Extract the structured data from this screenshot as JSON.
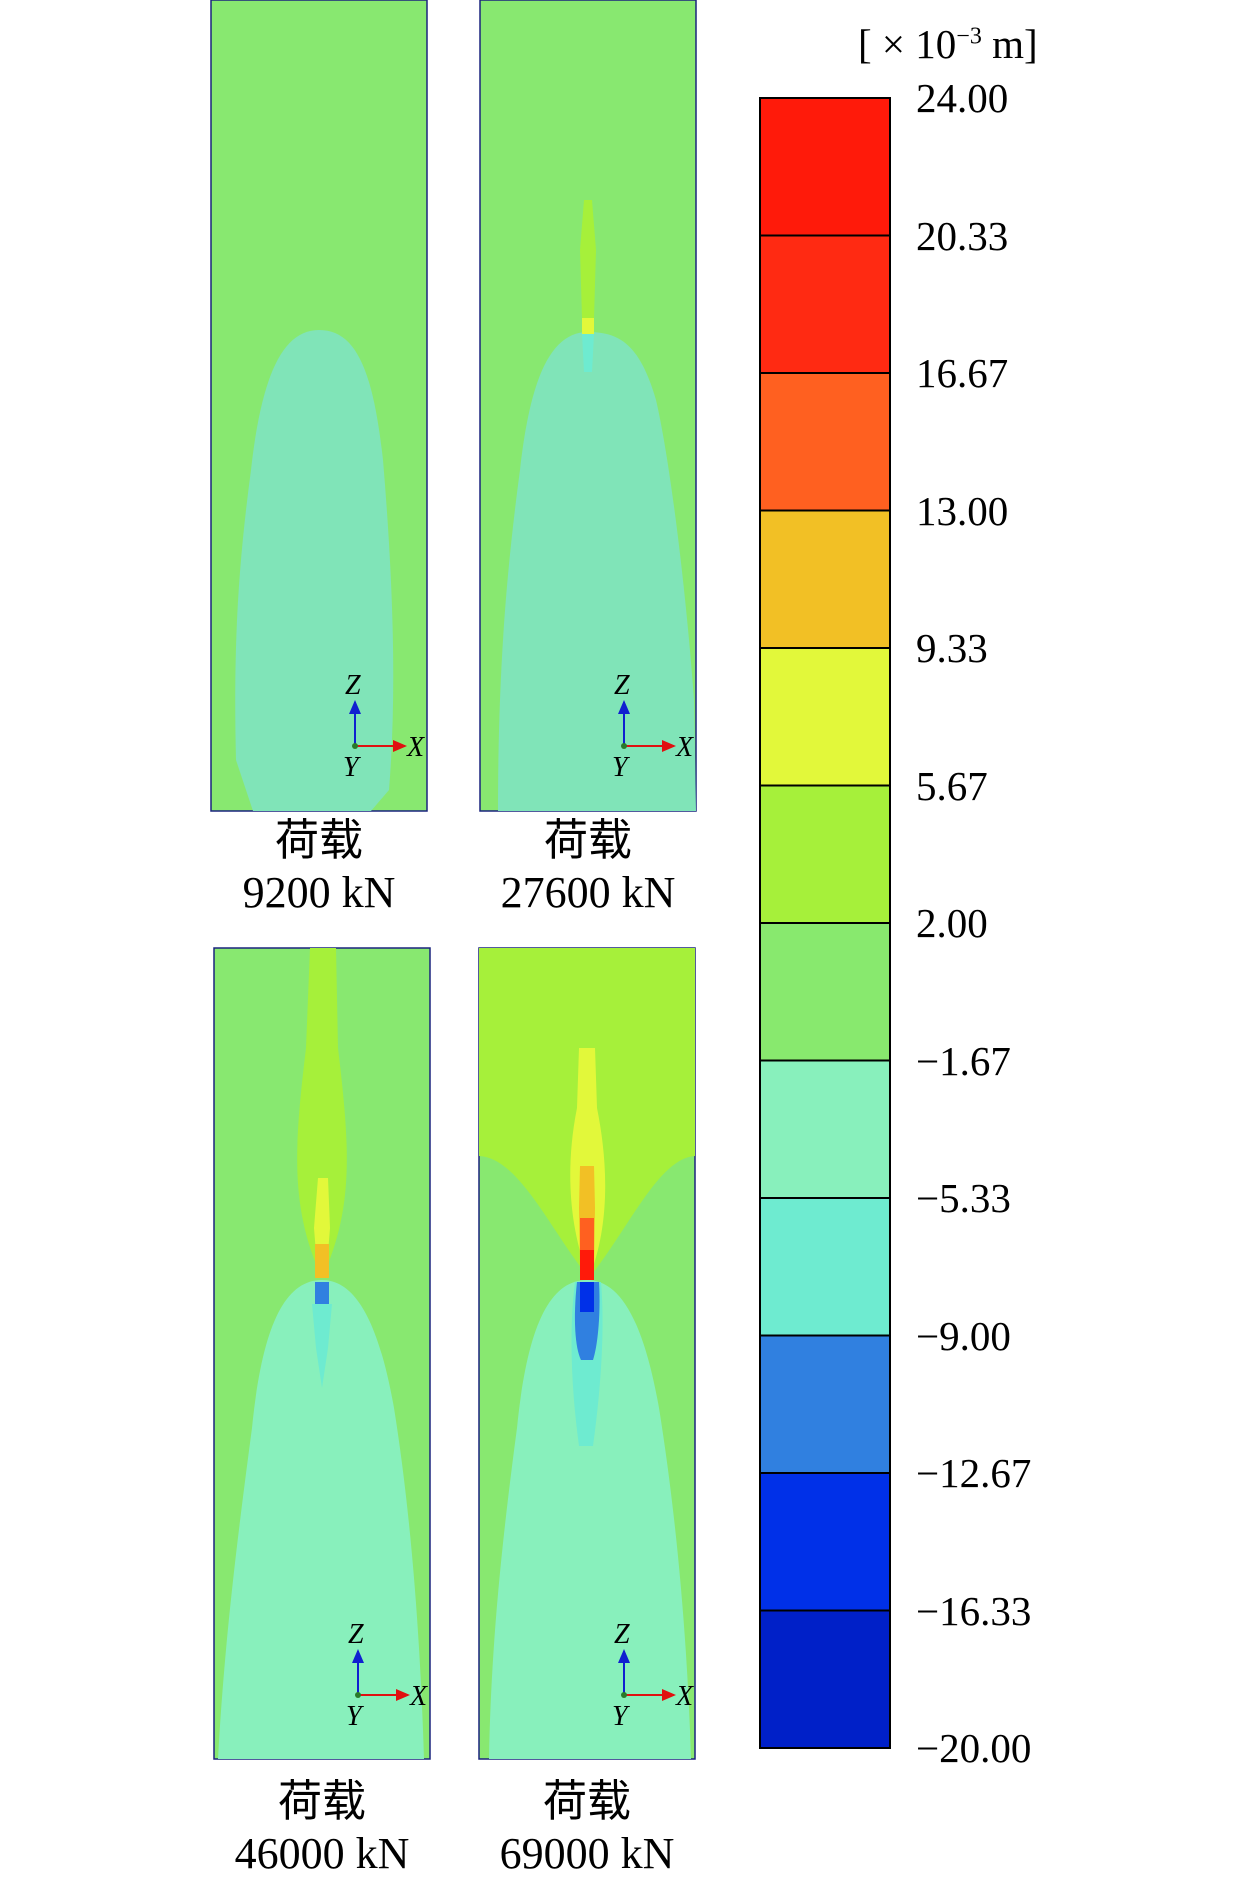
{
  "colorbar": {
    "unit_prefix": "[ × 10",
    "unit_exp": "−3",
    "unit_suffix": " m]",
    "labels": [
      "24.00",
      "20.33",
      "16.67",
      "13.00",
      "9.33",
      "5.67",
      "2.00",
      "−1.67",
      "−5.33",
      "−9.00",
      "−12.67",
      "−16.33",
      "−20.00"
    ],
    "colors": [
      "#ff1a0a",
      "#ff2a12",
      "#ff6020",
      "#f2c025",
      "#e2f83a",
      "#a6f03a",
      "#88e96e",
      "#88f0bc",
      "#6eebd0",
      "#3080e0",
      "#0030e8",
      "#0020c8"
    ]
  },
  "axes": {
    "z": "Z",
    "x": "X",
    "y": "Y"
  },
  "panels": [
    {
      "label": "荷载",
      "load": "9200 kN"
    },
    {
      "label": "荷载",
      "load": "27600 kN"
    },
    {
      "label": "荷载",
      "load": "46000 kN"
    },
    {
      "label": "荷载",
      "load": "69000 kN"
    }
  ]
}
